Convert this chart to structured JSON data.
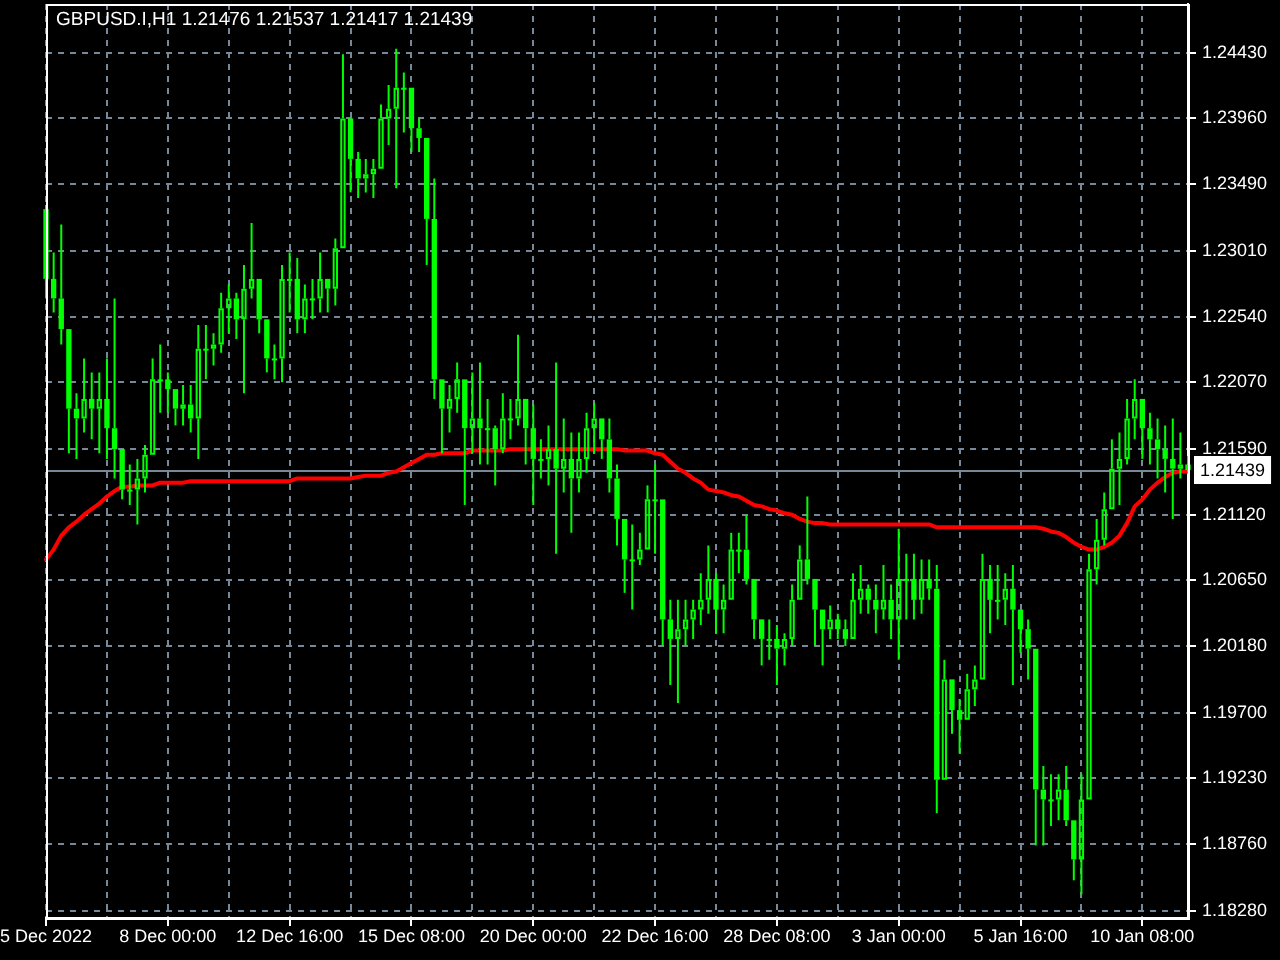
{
  "chart_data": {
    "type": "candlestick",
    "title": "GBPUSD.I,H1 1.21476 1.21537 1.21417 1.21439",
    "categories": [
      "5 Dec 2022",
      null,
      null,
      null,
      null,
      null,
      null,
      null,
      null,
      null,
      null,
      null,
      null,
      null,
      null,
      null,
      "8 Dec 00:00",
      null,
      null,
      null,
      null,
      null,
      null,
      null,
      null,
      null,
      null,
      null,
      null,
      null,
      null,
      null,
      "12 Dec 16:00",
      null,
      null,
      null,
      null,
      null,
      null,
      null,
      null,
      null,
      null,
      null,
      null,
      null,
      null,
      null,
      "15 Dec 08:00",
      null,
      null,
      null,
      null,
      null,
      null,
      null,
      null,
      null,
      null,
      null,
      null,
      null,
      null,
      null,
      "20 Dec 00:00",
      null,
      null,
      null,
      null,
      null,
      null,
      null,
      null,
      null,
      null,
      null,
      null,
      null,
      null,
      null,
      "22 Dec 16:00",
      null,
      null,
      null,
      null,
      null,
      null,
      null,
      null,
      null,
      null,
      null,
      null,
      null,
      null,
      null,
      "28 Dec 08:00",
      null,
      null,
      null,
      null,
      null,
      null,
      null,
      null,
      null,
      null,
      null,
      null,
      null,
      null,
      null,
      "3 Jan 00:00",
      null,
      null,
      null,
      null,
      null,
      null,
      null,
      null,
      null,
      null,
      null,
      null,
      null,
      null,
      null,
      "5 Jan 16:00",
      null,
      null,
      null,
      null,
      null,
      null,
      null,
      null,
      null,
      null,
      null,
      null,
      null,
      null,
      null,
      "10 Jan 08:00",
      null,
      null,
      null,
      null,
      null,
      null
    ],
    "color": "#00ff00",
    "ohlc": [
      [
        1.2331,
        1.2334,
        1.2267,
        1.2281
      ],
      [
        1.2281,
        1.23,
        1.2257,
        1.2267
      ],
      [
        1.2267,
        1.232,
        1.2234,
        1.2245
      ],
      [
        1.2245,
        1.2245,
        1.2156,
        1.2188
      ],
      [
        1.2188,
        1.2199,
        1.2152,
        1.2181
      ],
      [
        1.2181,
        1.2224,
        1.2171,
        1.2195
      ],
      [
        1.2195,
        1.2214,
        1.2166,
        1.2188
      ],
      [
        1.2188,
        1.2214,
        1.2156,
        1.2195
      ],
      [
        1.2195,
        1.2224,
        1.2152,
        1.2174
      ],
      [
        1.2174,
        1.2267,
        1.2138,
        1.2159
      ],
      [
        1.2159,
        1.2159,
        1.2123,
        1.213
      ],
      [
        1.213,
        1.2148,
        1.2119,
        1.213
      ],
      [
        1.213,
        1.2152,
        1.2105,
        1.2138
      ],
      [
        1.2138,
        1.2162,
        1.2128,
        1.2155
      ],
      [
        1.2155,
        1.2224,
        1.2155,
        1.2209
      ],
      [
        1.2209,
        1.2234,
        1.2185,
        1.2209
      ],
      [
        1.2209,
        1.2214,
        1.2185,
        1.2202
      ],
      [
        1.2202,
        1.2202,
        1.2176,
        1.2188
      ],
      [
        1.2188,
        1.2205,
        1.2176,
        1.2191
      ],
      [
        1.2191,
        1.2205,
        1.2171,
        1.2181
      ],
      [
        1.2181,
        1.2248,
        1.2152,
        1.2231
      ],
      [
        1.2231,
        1.2248,
        1.2209,
        1.2231
      ],
      [
        1.2231,
        1.2242,
        1.2219,
        1.2234
      ],
      [
        1.2234,
        1.2271,
        1.2228,
        1.226
      ],
      [
        1.226,
        1.2277,
        1.2242,
        1.2267
      ],
      [
        1.2267,
        1.2271,
        1.2238,
        1.2252
      ],
      [
        1.2252,
        1.2291,
        1.2199,
        1.2274
      ],
      [
        1.2274,
        1.2321,
        1.2267,
        1.2281
      ],
      [
        1.2281,
        1.2281,
        1.2242,
        1.2252
      ],
      [
        1.2252,
        1.2252,
        1.2214,
        1.2224
      ],
      [
        1.2224,
        1.2234,
        1.2209,
        1.2224
      ],
      [
        1.2224,
        1.2291,
        1.2207,
        1.2281
      ],
      [
        1.2281,
        1.23,
        1.2257,
        1.2281
      ],
      [
        1.2281,
        1.2296,
        1.2242,
        1.2252
      ],
      [
        1.2252,
        1.2277,
        1.2242,
        1.2267
      ],
      [
        1.2267,
        1.2281,
        1.2252,
        1.2267
      ],
      [
        1.2267,
        1.23,
        1.2257,
        1.2281
      ],
      [
        1.2281,
        1.2281,
        1.2257,
        1.2274
      ],
      [
        1.2274,
        1.231,
        1.2262,
        1.2303
      ],
      [
        1.2303,
        1.2442,
        1.2303,
        1.2396
      ],
      [
        1.2396,
        1.2396,
        1.2343,
        1.2367
      ],
      [
        1.2367,
        1.2372,
        1.2339,
        1.2353
      ],
      [
        1.2353,
        1.2367,
        1.2343,
        1.2356
      ],
      [
        1.2356,
        1.2367,
        1.2339,
        1.236
      ],
      [
        1.236,
        1.2406,
        1.236,
        1.2396
      ],
      [
        1.2396,
        1.242,
        1.2377,
        1.2403
      ],
      [
        1.2403,
        1.2446,
        1.2346,
        1.2418
      ],
      [
        1.2418,
        1.2429,
        1.2386,
        1.2418
      ],
      [
        1.2418,
        1.2418,
        1.2372,
        1.2389
      ],
      [
        1.2389,
        1.2396,
        1.2372,
        1.2382
      ],
      [
        1.2382,
        1.2382,
        1.2291,
        1.2324
      ],
      [
        1.2324,
        1.2353,
        1.2195,
        1.2209
      ],
      [
        1.2209,
        1.2209,
        1.2156,
        1.2188
      ],
      [
        1.2188,
        1.2205,
        1.2171,
        1.2195
      ],
      [
        1.2195,
        1.2221,
        1.2185,
        1.2209
      ],
      [
        1.2209,
        1.2209,
        1.2119,
        1.2174
      ],
      [
        1.2174,
        1.2214,
        1.2156,
        1.2181
      ],
      [
        1.2181,
        1.2221,
        1.2148,
        1.2174
      ],
      [
        1.2174,
        1.2195,
        1.2148,
        1.2174
      ],
      [
        1.2174,
        1.2176,
        1.2133,
        1.2159
      ],
      [
        1.2159,
        1.2199,
        1.2156,
        1.2181
      ],
      [
        1.2181,
        1.2195,
        1.2166,
        1.2181
      ],
      [
        1.2181,
        1.2241,
        1.2176,
        1.2195
      ],
      [
        1.2195,
        1.2195,
        1.2148,
        1.2174
      ],
      [
        1.2174,
        1.2191,
        1.2119,
        1.2152
      ],
      [
        1.2152,
        1.2166,
        1.2138,
        1.2152
      ],
      [
        1.2152,
        1.2176,
        1.2133,
        1.2159
      ],
      [
        1.2159,
        1.2221,
        1.2084,
        1.2145
      ],
      [
        1.2145,
        1.2181,
        1.2128,
        1.2152
      ],
      [
        1.2152,
        1.2171,
        1.2099,
        1.2138
      ],
      [
        1.2138,
        1.2171,
        1.2128,
        1.2152
      ],
      [
        1.2152,
        1.2185,
        1.2142,
        1.2174
      ],
      [
        1.2174,
        1.2192,
        1.2156,
        1.2181
      ],
      [
        1.2181,
        1.2181,
        1.2152,
        1.2166
      ],
      [
        1.2166,
        1.2181,
        1.2128,
        1.2138
      ],
      [
        1.2138,
        1.2148,
        1.209,
        1.2109
      ],
      [
        1.2109,
        1.2109,
        1.2056,
        1.208
      ],
      [
        1.208,
        1.2105,
        1.2044,
        1.208
      ],
      [
        1.208,
        1.2099,
        1.2076,
        1.2087
      ],
      [
        1.2087,
        1.2133,
        1.2087,
        1.2123
      ],
      [
        1.2123,
        1.2148,
        1.2084,
        1.2123
      ],
      [
        1.2123,
        1.2123,
        1.2018,
        1.2037
      ],
      [
        1.2037,
        1.2051,
        1.199,
        1.2023
      ],
      [
        1.2023,
        1.2051,
        1.1977,
        1.203
      ],
      [
        1.203,
        1.2051,
        1.2018,
        1.2037
      ],
      [
        1.2037,
        1.2051,
        1.2023,
        1.2044
      ],
      [
        1.2044,
        1.207,
        1.2033,
        1.2051
      ],
      [
        1.2051,
        1.209,
        1.2041,
        1.2066
      ],
      [
        1.2066,
        1.207,
        1.2027,
        1.2044
      ],
      [
        1.2044,
        1.2062,
        1.2027,
        1.2051
      ],
      [
        1.2051,
        1.2099,
        1.2051,
        1.2087
      ],
      [
        1.2087,
        1.2099,
        1.207,
        1.2087
      ],
      [
        1.2087,
        1.2112,
        1.2062,
        1.2066
      ],
      [
        1.2066,
        1.2066,
        1.2023,
        1.2037
      ],
      [
        1.2037,
        1.2037,
        1.2004,
        1.2023
      ],
      [
        1.2023,
        1.2037,
        1.2008,
        1.2023
      ],
      [
        1.2023,
        1.2033,
        1.199,
        1.2016
      ],
      [
        1.2016,
        1.2027,
        1.2004,
        1.2023
      ],
      [
        1.2023,
        1.2062,
        1.2018,
        1.2051
      ],
      [
        1.2051,
        1.209,
        1.2051,
        1.208
      ],
      [
        1.208,
        1.2125,
        1.2062,
        1.2066
      ],
      [
        1.2066,
        1.2066,
        1.2018,
        1.2044
      ],
      [
        1.2044,
        1.2044,
        1.2004,
        1.203
      ],
      [
        1.203,
        1.2047,
        1.2023,
        1.2037
      ],
      [
        1.2037,
        1.2041,
        1.2023,
        1.203
      ],
      [
        1.203,
        1.2037,
        1.2018,
        1.2023
      ],
      [
        1.2023,
        1.207,
        1.2023,
        1.2051
      ],
      [
        1.2051,
        1.2076,
        1.2041,
        1.2059
      ],
      [
        1.2059,
        1.2062,
        1.2041,
        1.2051
      ],
      [
        1.2051,
        1.2062,
        1.2027,
        1.2044
      ],
      [
        1.2044,
        1.2076,
        1.2037,
        1.2051
      ],
      [
        1.2051,
        1.2062,
        1.2023,
        1.2037
      ],
      [
        1.2037,
        1.2102,
        1.2008,
        1.2066
      ],
      [
        1.2066,
        1.2084,
        1.2037,
        1.2066
      ],
      [
        1.2066,
        1.2084,
        1.2037,
        1.2051
      ],
      [
        1.2051,
        1.208,
        1.2041,
        1.2066
      ],
      [
        1.2066,
        1.208,
        1.2051,
        1.2059
      ],
      [
        1.2059,
        1.2076,
        1.1898,
        1.1922
      ],
      [
        1.1922,
        1.2008,
        1.1922,
        1.1994
      ],
      [
        1.1994,
        1.1994,
        1.1955,
        1.1972
      ],
      [
        1.1972,
        1.198,
        1.1941,
        1.1965
      ],
      [
        1.1965,
        1.1998,
        1.1965,
        1.1987
      ],
      [
        1.1987,
        1.2004,
        1.1975,
        1.1994
      ],
      [
        1.1994,
        1.2084,
        1.1994,
        1.2066
      ],
      [
        1.2066,
        1.2076,
        1.2027,
        1.2051
      ],
      [
        1.2051,
        1.2076,
        1.2037,
        1.2051
      ],
      [
        1.2051,
        1.207,
        1.2033,
        1.2059
      ],
      [
        1.2059,
        1.2076,
        1.199,
        1.2044
      ],
      [
        1.2044,
        1.2044,
        1.2013,
        1.203
      ],
      [
        1.203,
        1.2037,
        1.1994,
        1.2016
      ],
      [
        1.2016,
        1.2016,
        1.1875,
        1.1915
      ],
      [
        1.1915,
        1.1932,
        1.1875,
        1.1908
      ],
      [
        1.1908,
        1.1926,
        1.1889,
        1.1908
      ],
      [
        1.1908,
        1.1926,
        1.1893,
        1.1915
      ],
      [
        1.1915,
        1.1932,
        1.1889,
        1.1893
      ],
      [
        1.1893,
        1.1893,
        1.185,
        1.1865
      ],
      [
        1.1865,
        1.1926,
        1.184,
        1.1908
      ],
      [
        1.1908,
        1.2084,
        1.1908,
        1.2073
      ],
      [
        1.2073,
        1.2109,
        1.2062,
        1.2094
      ],
      [
        1.2094,
        1.2128,
        1.209,
        1.2116
      ],
      [
        1.2116,
        1.2166,
        1.2116,
        1.2145
      ],
      [
        1.2145,
        1.2171,
        1.2119,
        1.2152
      ],
      [
        1.2152,
        1.2195,
        1.2148,
        1.2181
      ],
      [
        1.2181,
        1.2209,
        1.2166,
        1.2195
      ],
      [
        1.2195,
        1.2195,
        1.2152,
        1.2174
      ],
      [
        1.2174,
        1.2185,
        1.2148,
        1.2166
      ],
      [
        1.2166,
        1.2181,
        1.2138,
        1.2159
      ],
      [
        1.2159,
        1.2176,
        1.2128,
        1.2152
      ],
      [
        1.2152,
        1.2181,
        1.2109,
        1.2145
      ],
      [
        1.2145,
        1.2171,
        1.2138,
        1.2148
      ],
      [
        1.2148,
        1.2154,
        1.2142,
        1.2144
      ]
    ],
    "series": [
      {
        "type": "line",
        "color": "#ff0000",
        "values": [
          1.208,
          1.2087,
          1.2097,
          1.2103,
          1.2107,
          1.2112,
          1.2116,
          1.212,
          1.2125,
          1.2129,
          1.2132,
          1.2132,
          1.2133,
          1.2133,
          1.2133,
          1.2135,
          1.2135,
          1.2135,
          1.2135,
          1.2136,
          1.2136,
          1.2136,
          1.2136,
          1.2136,
          1.2136,
          1.2136,
          1.2136,
          1.2136,
          1.2136,
          1.2136,
          1.2136,
          1.2136,
          1.2136,
          1.2138,
          1.2138,
          1.2138,
          1.2138,
          1.2138,
          1.2138,
          1.2138,
          1.2138,
          1.2139,
          1.214,
          1.214,
          1.214,
          1.2142,
          1.2143,
          1.2146,
          1.2149,
          1.2152,
          1.2155,
          1.2155,
          1.2156,
          1.2156,
          1.2156,
          1.2156,
          1.2158,
          1.2158,
          1.2158,
          1.2158,
          1.2158,
          1.2159,
          1.2159,
          1.2159,
          1.2159,
          1.2159,
          1.2159,
          1.2159,
          1.2159,
          1.2159,
          1.2159,
          1.2159,
          1.2159,
          1.2159,
          1.2159,
          1.2159,
          1.2158,
          1.2158,
          1.2158,
          1.2158,
          1.2156,
          1.2155,
          1.215,
          1.2145,
          1.2142,
          1.2138,
          1.2135,
          1.213,
          1.2129,
          1.2128,
          1.2126,
          1.2125,
          1.2122,
          1.2119,
          1.2118,
          1.2116,
          1.2115,
          1.2113,
          1.2112,
          1.2109,
          1.2107,
          1.2106,
          1.2106,
          1.2105,
          1.2105,
          1.2105,
          1.2105,
          1.2105,
          1.2105,
          1.2105,
          1.2105,
          1.2105,
          1.2105,
          1.2105,
          1.2105,
          1.2105,
          1.2105,
          1.2103,
          1.2103,
          1.2103,
          1.2103,
          1.2103,
          1.2103,
          1.2103,
          1.2103,
          1.2103,
          1.2103,
          1.2103,
          1.2103,
          1.2103,
          1.2103,
          1.2102,
          1.21,
          1.2099,
          1.2096,
          1.2092,
          1.2089,
          1.2087,
          1.2087,
          1.2089,
          1.2092,
          1.2097,
          1.2106,
          1.2118,
          1.2123,
          1.213,
          1.2135,
          1.2139,
          1.2142,
          1.2143,
          1.2143
        ]
      }
    ],
    "ylim": [
      1.1823,
      1.2478
    ],
    "yticks": [
      {
        "value": 1.1828,
        "label": "1.18280"
      },
      {
        "value": 1.1876,
        "label": "1.18760"
      },
      {
        "value": 1.1923,
        "label": "1.19230"
      },
      {
        "value": 1.197,
        "label": "1.19700"
      },
      {
        "value": 1.2018,
        "label": "1.20180"
      },
      {
        "value": 1.2065,
        "label": "1.20650"
      },
      {
        "value": 1.2112,
        "label": "1.21120"
      },
      {
        "value": 1.2159,
        "label": "1.21590"
      },
      {
        "value": 1.2207,
        "label": "1.22070"
      },
      {
        "value": 1.2254,
        "label": "1.22540"
      },
      {
        "value": 1.2301,
        "label": "1.23010"
      },
      {
        "value": 1.2349,
        "label": "1.23490"
      },
      {
        "value": 1.2396,
        "label": "1.23960"
      },
      {
        "value": 1.2443,
        "label": "1.24430"
      }
    ],
    "ref_lines": [
      {
        "axis": "y",
        "value": 1.21439,
        "label": "1.21439",
        "color": "#778899"
      }
    ],
    "grid": true
  }
}
